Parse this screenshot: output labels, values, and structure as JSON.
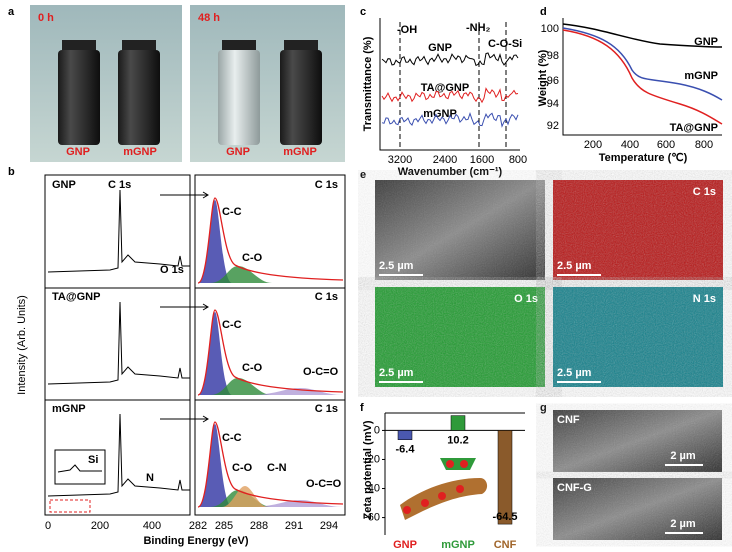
{
  "panel_a": {
    "label": "a",
    "photos": [
      {
        "time": "0 h",
        "samples": [
          "GNP",
          "mGNP"
        ]
      },
      {
        "time": "48 h",
        "samples": [
          "GNP",
          "mGNP"
        ]
      }
    ]
  },
  "panel_b": {
    "label": "b",
    "y_label": "Intensity (Arb. Units)",
    "x_label": "Binding Energy (eV)",
    "survey_xticks": [
      0,
      200,
      400
    ],
    "c1s_xticks": [
      282,
      285,
      288,
      291,
      294
    ],
    "rows": [
      {
        "sample": "GNP",
        "survey_peaks": [
          "C 1s",
          "O 1s"
        ],
        "c1s_title": "C 1s",
        "components": [
          "C-C",
          "C-O"
        ]
      },
      {
        "sample": "TA@GNP",
        "c1s_title": "C 1s",
        "components": [
          "C-C",
          "C-O",
          "O-C=O"
        ]
      },
      {
        "sample": "mGNP",
        "survey_peaks": [
          "Si",
          "N"
        ],
        "c1s_title": "C 1s",
        "components": [
          "C-C",
          "C-O",
          "C-N",
          "O-C=O"
        ]
      }
    ]
  },
  "panel_c": {
    "label": "c",
    "y_label": "Transmittance (%)",
    "x_label": "Wavenumber (cm⁻¹)",
    "xticks": [
      3200,
      2400,
      1600,
      800
    ],
    "bands": [
      "-OH",
      "-NH₂",
      "C-O-Si"
    ],
    "series": [
      "GNP",
      "TA@GNP",
      "mGNP"
    ]
  },
  "panel_d": {
    "label": "d",
    "y_label": "Weight (%)",
    "x_label": "Temperature (℃)",
    "xticks": [
      200,
      400,
      600,
      800
    ],
    "yticks": [
      100,
      98,
      96,
      94,
      92
    ],
    "series": [
      "GNP",
      "mGNP",
      "TA@GNP"
    ]
  },
  "panel_e": {
    "label": "e",
    "maps": [
      {
        "scale": "2.5 µm"
      },
      {
        "title": "C 1s",
        "scale": "2.5 µm"
      },
      {
        "title": "O 1s",
        "scale": "2.5 µm"
      },
      {
        "title": "N 1s",
        "scale": "2.5 µm"
      }
    ]
  },
  "panel_f": {
    "label": "f",
    "y_label": "Zeta potential (mV)",
    "categories": [
      "GNP",
      "mGNP",
      "CNF"
    ],
    "values": [
      -6.4,
      10.2,
      -64.5
    ],
    "colors": [
      "#4a58b0",
      "#2f9a3a",
      "#8a5a2b"
    ],
    "label_colors": [
      "#e02020",
      "#2f9a3a",
      "#a0652a"
    ],
    "ylim": [
      -72,
      12
    ],
    "yticks": [
      0,
      -20,
      -40,
      -60
    ]
  },
  "panel_g": {
    "label": "g",
    "images": [
      {
        "title": "CNF",
        "scale": "2 µm"
      },
      {
        "title": "CNF-G",
        "scale": "2 µm"
      }
    ]
  }
}
